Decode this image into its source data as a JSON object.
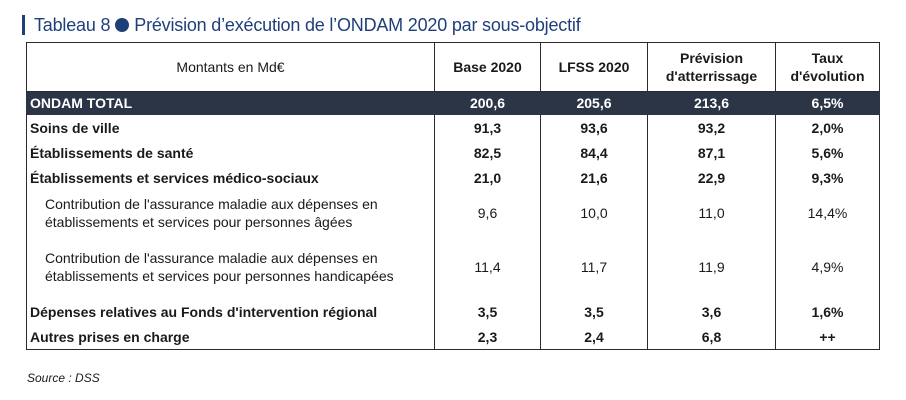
{
  "title": {
    "prefix": "Tableau 8",
    "text": "Prévision d’exécution de l’ONDAM 2020 par sous-objectif"
  },
  "table": {
    "headers": [
      "Montants en Md€",
      "Base 2020",
      "LFSS 2020",
      "Prévision d'atterrissage",
      "Taux d'évolution"
    ],
    "rows": [
      {
        "label": "ONDAM TOTAL",
        "values": [
          "200,6",
          "205,6",
          "213,6",
          "6,5%"
        ]
      },
      {
        "label": "Soins de ville",
        "values": [
          "91,3",
          "93,6",
          "93,2",
          "2,0%"
        ]
      },
      {
        "label": "Établissements de santé",
        "values": [
          "82,5",
          "84,4",
          "87,1",
          "5,6%"
        ]
      },
      {
        "label": "Établissements et services médico-sociaux",
        "values": [
          "21,0",
          "21,6",
          "22,9",
          "9,3%"
        ]
      },
      {
        "label": "Contribution de l'assurance maladie aux dépenses en établissements et services pour personnes âgées",
        "values": [
          "9,6",
          "10,0",
          "11,0",
          "14,4%"
        ]
      },
      {
        "label": "Contribution de l'assurance maladie aux dépenses en établissements et services pour personnes handicapées",
        "values": [
          "11,4",
          "11,7",
          "11,9",
          "4,9%"
        ]
      },
      {
        "label": "Dépenses relatives au Fonds d'intervention régional",
        "values": [
          "3,5",
          "3,5",
          "3,6",
          "1,6%"
        ]
      },
      {
        "label": "Autres prises en charge",
        "values": [
          "2,3",
          "2,4",
          "6,8",
          "++"
        ]
      }
    ]
  },
  "source": "Source : DSS"
}
